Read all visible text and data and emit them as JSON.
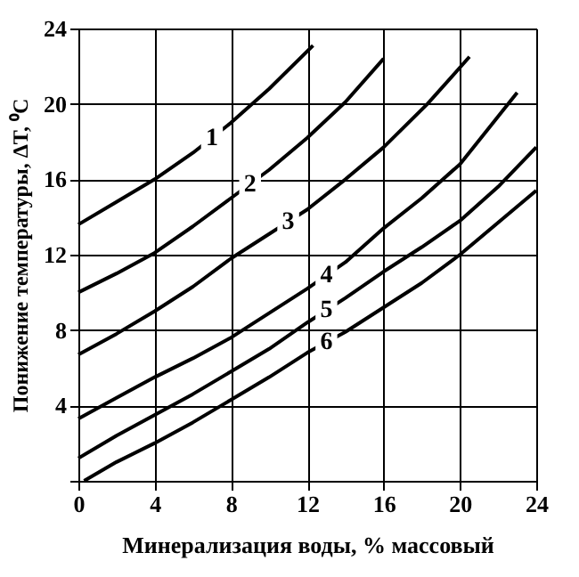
{
  "chart_data": {
    "type": "line",
    "xlabel": "Минерализация  воды, % массовый",
    "ylabel": "Понижение температуры,  ΔT, ⁰C",
    "xlim": [
      0,
      24
    ],
    "ylim": [
      0,
      24
    ],
    "xticks": [
      0,
      4,
      8,
      12,
      16,
      20,
      24
    ],
    "yticks": [
      {
        "value": 0,
        "label": null
      },
      4,
      8,
      12,
      16,
      20,
      24
    ],
    "grid": true,
    "marker": "none",
    "line_style": "solid",
    "series": [
      {
        "name": "1",
        "color": "#000000",
        "x": [
          0,
          2,
          4,
          6,
          8,
          9,
          10,
          12.3
        ],
        "values": [
          13.6,
          14.8,
          16,
          17.4,
          19,
          19.9,
          20.8,
          23.1
        ]
      },
      {
        "name": "2",
        "color": "#000000",
        "x": [
          0,
          2,
          4,
          6,
          8,
          10,
          12,
          14,
          16
        ],
        "values": [
          10,
          11,
          12.1,
          13.5,
          15,
          16.5,
          18.2,
          20.1,
          22.4
        ]
      },
      {
        "name": "3",
        "color": "#000000",
        "x": [
          0,
          2,
          4,
          6,
          8,
          10,
          12,
          14,
          16,
          18.3,
          20.5
        ],
        "values": [
          6.7,
          7.8,
          9,
          10.3,
          11.8,
          13.1,
          14.4,
          16,
          17.7,
          20,
          22.5
        ]
      },
      {
        "name": "4",
        "color": "#000000",
        "x": [
          0,
          2,
          4,
          6,
          8,
          10,
          12,
          14,
          16,
          18,
          20,
          23
        ],
        "values": [
          3.3,
          4.4,
          5.5,
          6.5,
          7.6,
          8.9,
          10.2,
          11.6,
          13.4,
          15,
          16.8,
          20.6
        ]
      },
      {
        "name": "5",
        "color": "#000000",
        "x": [
          0,
          2,
          4,
          6,
          8,
          10,
          12,
          14,
          16,
          18,
          20,
          22,
          24
        ],
        "values": [
          1.2,
          2.4,
          3.5,
          4.6,
          5.8,
          7,
          8.4,
          9.7,
          11.1,
          12.4,
          13.8,
          15.6,
          17.7
        ]
      },
      {
        "name": "6",
        "color": "#000000",
        "x": [
          0.3,
          2,
          4,
          6,
          8,
          10,
          12,
          14,
          16,
          18,
          20,
          22,
          24
        ],
        "values": [
          0,
          1,
          2,
          3.1,
          4.3,
          5.5,
          6.8,
          7.9,
          9.2,
          10.5,
          12,
          13.7,
          15.4
        ]
      }
    ]
  }
}
